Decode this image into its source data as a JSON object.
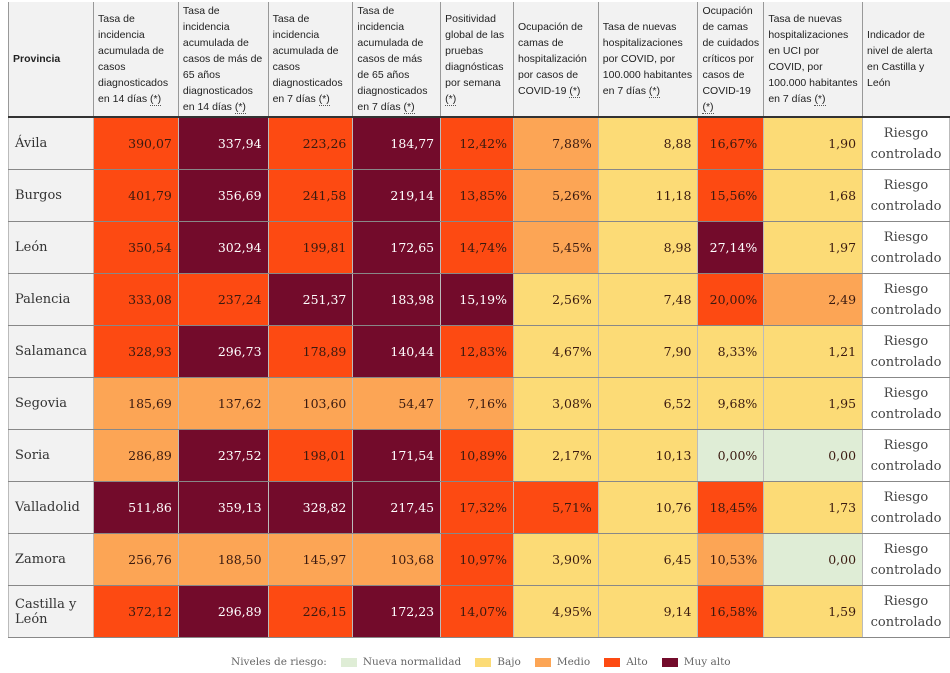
{
  "headers": [
    {
      "text": "Provincia",
      "ast": ""
    },
    {
      "text": "Tasa de incidencia acumulada de casos diagnosticados en 14 días ",
      "ast": "(*)"
    },
    {
      "text": "Tasa de incidencia acumulada de casos de más de 65 años diagnosticados en 14 días ",
      "ast": "(*)"
    },
    {
      "text": "Tasa de incidencia acumulada de casos diagnosticados en 7 días ",
      "ast": "(*)"
    },
    {
      "text": "Tasa de incidencia acumulada de casos de más de 65 años diagnosticados en 7 días ",
      "ast": "(*)"
    },
    {
      "text": "Positividad global de las pruebas diagnósticas por semana ",
      "ast": "(*)"
    },
    {
      "text": "Ocupación de camas de hospitalización por casos de COVID-19 ",
      "ast": "(*)"
    },
    {
      "text": "Tasa de nuevas hospitalizaciones por COVID, por 100.000 habitantes en 7 días ",
      "ast": "(*)"
    },
    {
      "text": "Ocupación de camas de cuidados críticos por casos de COVID-19 ",
      "ast": "(*)"
    },
    {
      "text": "Tasa de nuevas hospitalizaciones en UCI por COVID, por 100.000 habitantes en 7 días ",
      "ast": "(*)"
    },
    {
      "text": "Indicador de nivel de alerta en Castilla y León",
      "ast": ""
    }
  ],
  "rows": [
    {
      "name": "Ávila",
      "values": [
        "390,07",
        "337,94",
        "223,26",
        "184,77",
        "12,42%",
        "7,88%",
        "8,88",
        "16,67%",
        "1,90"
      ],
      "levels": "AMAMADBAB",
      "alert": "Riesgo controlado"
    },
    {
      "name": "Burgos",
      "values": [
        "401,79",
        "356,69",
        "241,58",
        "219,14",
        "13,85%",
        "5,26%",
        "11,18",
        "15,56%",
        "1,68"
      ],
      "levels": "AMAMADBAB",
      "alert": "Riesgo controlado"
    },
    {
      "name": "León",
      "values": [
        "350,54",
        "302,94",
        "199,81",
        "172,65",
        "14,74%",
        "5,45%",
        "8,98",
        "27,14%",
        "1,97"
      ],
      "levels": "AMAMADBMB",
      "alert": "Riesgo controlado"
    },
    {
      "name": "Palencia",
      "values": [
        "333,08",
        "237,24",
        "251,37",
        "183,98",
        "15,19%",
        "2,56%",
        "7,48",
        "20,00%",
        "2,49"
      ],
      "levels": "AAMMMBBAD",
      "alert": "Riesgo controlado"
    },
    {
      "name": "Salamanca",
      "values": [
        "328,93",
        "296,73",
        "178,89",
        "140,44",
        "12,83%",
        "4,67%",
        "7,90",
        "8,33%",
        "1,21"
      ],
      "levels": "AMAMABBBB",
      "alert": "Riesgo controlado"
    },
    {
      "name": "Segovia",
      "values": [
        "185,69",
        "137,62",
        "103,60",
        "54,47",
        "7,16%",
        "3,08%",
        "6,52",
        "9,68%",
        "1,95"
      ],
      "levels": "DDDDDBBBB",
      "alert": "Riesgo controlado"
    },
    {
      "name": "Soria",
      "values": [
        "286,89",
        "237,52",
        "198,01",
        "171,54",
        "10,89%",
        "2,17%",
        "10,13",
        "0,00%",
        "0,00"
      ],
      "levels": "DMAMABBNN",
      "alert": "Riesgo controlado"
    },
    {
      "name": "Valladolid",
      "values": [
        "511,86",
        "359,13",
        "328,82",
        "217,45",
        "17,32%",
        "5,71%",
        "10,76",
        "18,45%",
        "1,73"
      ],
      "levels": "MMMMAABAB",
      "alert": "Riesgo controlado"
    },
    {
      "name": "Zamora",
      "values": [
        "256,76",
        "188,50",
        "145,97",
        "103,68",
        "10,97%",
        "3,90%",
        "6,45",
        "10,53%",
        "0,00"
      ],
      "levels": "DDDDABBDN",
      "alert": "Riesgo controlado"
    },
    {
      "name": "Castilla y León",
      "values": [
        "372,12",
        "296,89",
        "226,15",
        "172,23",
        "14,07%",
        "4,95%",
        "9,14",
        "16,58%",
        "1,59"
      ],
      "levels": "AMAMABBAB",
      "alert": "Riesgo controlado"
    }
  ],
  "legend": {
    "label": "Niveles de riesgo:",
    "items": [
      {
        "code": "N",
        "label": "Nueva normalidad",
        "color": "#dfedd6"
      },
      {
        "code": "B",
        "label": "Bajo",
        "color": "#fcdb76"
      },
      {
        "code": "D",
        "label": "Medio",
        "color": "#fca555"
      },
      {
        "code": "A",
        "label": "Alto",
        "color": "#fd4a12"
      },
      {
        "code": "M",
        "label": "Muy alto",
        "color": "#730b2b"
      }
    ]
  }
}
